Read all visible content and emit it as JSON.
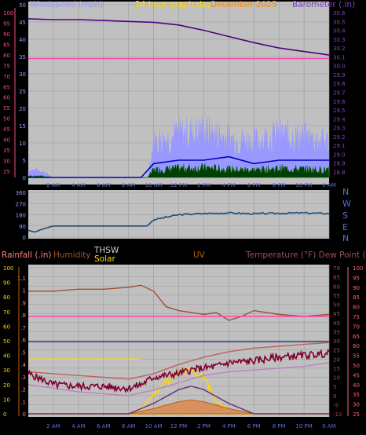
{
  "panel_top": {
    "title_left": "Windspeed (mph)",
    "title_center": "24 hour graph day",
    "title_date": "December 2025",
    "title_right": "Barometer (.in)",
    "title_mid_red": "Gust"
  },
  "panel_mid": {
    "dir_labels": [
      "N",
      "W",
      "S",
      "E",
      "N"
    ]
  },
  "panel_bottom": {
    "title_rain": "Rainfall (.in)",
    "title_hum": "Humidity",
    "title_thsw": "THSW",
    "title_solar": "Solar",
    "title_uv": "UV",
    "title_temp": "Temperature (°F) Dew Point (°F)"
  },
  "colors": {
    "frame_bg": "#000000",
    "plot_bg": "#a8a8a8",
    "wind": "#9898ff",
    "wind_avg": "#0000c0",
    "gust_dark": "#004000",
    "barometer": "#500080",
    "pink_line": "#ff44aa",
    "direction": "#1a4d7a",
    "temp": "#c06060",
    "dewpoint": "#800030",
    "humidity": "#a05030",
    "solar": "#ffd800",
    "uv": "#6a2a80",
    "rain_axis": "#ff8080"
  },
  "chart_data": [
    {
      "type": "line",
      "x_ticks": [
        "2 AM",
        "4 AM",
        "6 AM",
        "8 AM",
        "10 AM",
        "12 PM",
        "2 PM",
        "4 PM",
        "6 PM",
        "8 PM",
        "10 PM",
        "0 AM"
      ],
      "left_axis_ticks": [
        0,
        5,
        10,
        15,
        20,
        25,
        30,
        35,
        40,
        45,
        50
      ],
      "outer_axis_ticks": [
        25,
        30,
        35,
        40,
        45,
        50,
        55,
        60,
        65,
        70,
        75,
        80,
        85,
        90,
        95,
        100
      ],
      "right_axis_ticks": [
        28.8,
        28.9,
        29.0,
        29.1,
        29.2,
        29.3,
        29.4,
        29.5,
        29.6,
        29.7,
        29.8,
        29.9,
        30.0,
        30.1,
        30.2,
        30.3,
        30.4,
        30.5,
        30.6
      ],
      "series": [
        {
          "name": "Barometer",
          "hours": [
            0,
            2,
            4,
            6,
            8,
            10,
            12,
            14,
            16,
            18,
            20,
            22,
            24
          ],
          "values": [
            30.53,
            30.52,
            30.52,
            30.51,
            30.5,
            30.49,
            30.46,
            30.4,
            30.33,
            30.26,
            30.2,
            30.16,
            30.12
          ]
        },
        {
          "hours": [
            0,
            24
          ],
          "values": [
            30.08,
            30.08
          ]
        }
      ],
      "wind_envelope": {
        "hours": [
          0,
          1,
          2,
          9.5,
          10,
          12,
          14,
          16,
          18,
          20,
          22,
          24
        ],
        "values": [
          2,
          2,
          0,
          0,
          10,
          12,
          13,
          11,
          10,
          12,
          11,
          10
        ]
      },
      "wind_avg": {
        "hours": [
          0,
          9,
          10,
          12,
          14,
          16,
          18,
          20,
          22,
          24
        ],
        "values": [
          0,
          0,
          4,
          5,
          5,
          6,
          4,
          5,
          5,
          5
        ]
      }
    },
    {
      "type": "line",
      "yticks": [
        0,
        90,
        180,
        270,
        360
      ],
      "series": [
        {
          "hours": [
            0,
            0.5,
            1,
            1.5,
            2,
            4,
            6,
            8,
            9.5,
            10,
            12,
            14,
            16,
            18,
            20,
            22,
            24
          ],
          "values": [
            55,
            40,
            60,
            75,
            90,
            90,
            90,
            90,
            90,
            140,
            180,
            190,
            195,
            188,
            192,
            195,
            190
          ]
        }
      ]
    },
    {
      "type": "line",
      "rain_ticks": [
        0,
        0.1,
        0.2,
        0.3,
        0.4,
        0.5,
        0.6,
        0.7,
        0.8,
        0.9,
        1.0,
        1.1
      ],
      "left_pct_ticks": [
        0,
        10,
        20,
        30,
        40,
        50,
        60,
        70,
        80,
        90,
        100
      ],
      "temp_ticks": [
        -10,
        -5,
        0,
        5,
        10,
        15,
        20,
        25,
        30,
        35,
        40,
        45,
        50,
        55,
        60,
        65,
        70
      ],
      "hum_ticks": [
        25,
        30,
        35,
        40,
        45,
        50,
        55,
        60,
        65,
        70,
        75,
        80,
        85,
        90,
        95,
        100
      ],
      "series": [
        {
          "name": "Humidity",
          "hours": [
            0,
            2,
            4,
            6,
            8,
            9,
            10,
            11,
            12,
            14,
            15,
            16,
            17,
            18,
            20,
            22,
            24
          ],
          "values": [
            88,
            88,
            89,
            89,
            90,
            91,
            88,
            80,
            78,
            76,
            77,
            73,
            75,
            78,
            76,
            75,
            76
          ]
        },
        {
          "hours": [
            0,
            24
          ],
          "values": [
            75,
            75
          ]
        },
        {
          "hours": [
            0,
            24
          ],
          "values": [
            62,
            62
          ]
        },
        {
          "name": "Temperature",
          "hours": [
            0,
            2,
            4,
            6,
            8,
            10,
            12,
            14,
            16,
            18,
            20,
            22,
            24
          ],
          "values": [
            13,
            12,
            11,
            10,
            9,
            12,
            17,
            21,
            24,
            26,
            27,
            28,
            29
          ]
        },
        {
          "name": "Dew Point",
          "hours": [
            0,
            2,
            4,
            6,
            8,
            10,
            12,
            14,
            16,
            18,
            20,
            22,
            24
          ],
          "values": [
            6,
            4,
            2,
            1,
            0,
            3,
            7,
            11,
            13,
            14,
            15,
            16,
            18
          ]
        },
        {
          "name": "THSW",
          "hours": [
            0,
            1,
            2,
            4,
            6,
            8,
            9,
            10,
            12,
            13,
            14,
            15,
            16,
            18,
            20,
            22,
            24
          ],
          "values": [
            12,
            9,
            6,
            5,
            5,
            4,
            6,
            10,
            12,
            14,
            15,
            16,
            18,
            19,
            21,
            22,
            23
          ]
        },
        {
          "name": "Solar",
          "hours": [
            0,
            8,
            9,
            10,
            11,
            12,
            13,
            14,
            14.5,
            15,
            16,
            18,
            24
          ],
          "values": [
            0,
            0,
            20,
            90,
            150,
            190,
            200,
            170,
            120,
            60,
            20,
            0,
            0
          ]
        },
        {
          "name": "UV",
          "hours": [
            0,
            8,
            10,
            12,
            13,
            14,
            16,
            18,
            24
          ],
          "values": [
            0,
            0,
            3,
            7,
            8,
            7,
            3,
            0,
            0
          ]
        }
      ]
    }
  ]
}
